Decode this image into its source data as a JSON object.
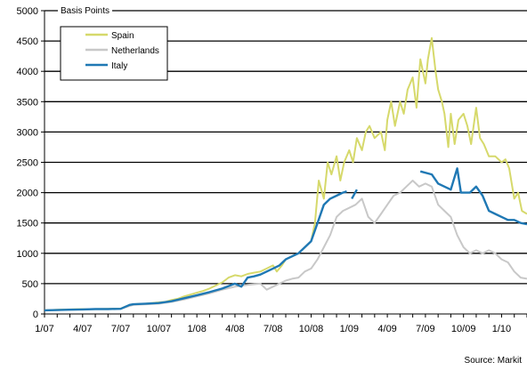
{
  "chart_data": {
    "type": "line",
    "title": "",
    "xlabel": "",
    "ylabel": "",
    "unit_label": "Basis Points",
    "source": "Source: Markit",
    "ylim": [
      0,
      5000
    ],
    "yticks": [
      0,
      500,
      1000,
      1500,
      2000,
      2500,
      3000,
      3500,
      4000,
      4500,
      5000
    ],
    "xlim": [
      0,
      38
    ],
    "xticks": [
      {
        "label": "1/07",
        "x": 0
      },
      {
        "label": "4/07",
        "x": 3
      },
      {
        "label": "7/07",
        "x": 6
      },
      {
        "label": "10/07",
        "x": 9
      },
      {
        "label": "1/08",
        "x": 12
      },
      {
        "label": "4/08",
        "x": 15
      },
      {
        "label": "7/08",
        "x": 18
      },
      {
        "label": "10/08",
        "x": 21
      },
      {
        "label": "1/09",
        "x": 24
      },
      {
        "label": "4/09",
        "x": 27
      },
      {
        "label": "7/09",
        "x": 30
      },
      {
        "label": "10/09",
        "x": 33
      },
      {
        "label": "1/10",
        "x": 36
      }
    ],
    "grid": "horizontal",
    "legend_position": "top-left",
    "series": [
      {
        "name": "Spain",
        "color": "#d6d96b",
        "points": [
          [
            0,
            60
          ],
          [
            1,
            70
          ],
          [
            2,
            75
          ],
          [
            3,
            80
          ],
          [
            4,
            80
          ],
          [
            5,
            85
          ],
          [
            6,
            90
          ],
          [
            6.7,
            150
          ],
          [
            7,
            160
          ],
          [
            8,
            170
          ],
          [
            9,
            190
          ],
          [
            9.5,
            200
          ],
          [
            10,
            230
          ],
          [
            10.5,
            250
          ],
          [
            11,
            290
          ],
          [
            11.5,
            320
          ],
          [
            12,
            350
          ],
          [
            12.5,
            380
          ],
          [
            13,
            420
          ],
          [
            13.5,
            470
          ],
          [
            14,
            520
          ],
          [
            14.5,
            600
          ],
          [
            15,
            640
          ],
          [
            15.5,
            620
          ],
          [
            16,
            660
          ],
          [
            16.5,
            680
          ],
          [
            17,
            700
          ],
          [
            17.5,
            750
          ],
          [
            18,
            800
          ],
          [
            18.3,
            700
          ],
          [
            18.7,
            800
          ],
          [
            19,
            900
          ],
          [
            19.5,
            950
          ],
          [
            20,
            1000
          ],
          [
            20.5,
            1100
          ],
          [
            21,
            1200
          ],
          [
            21.3,
            1500
          ],
          [
            21.6,
            2200
          ],
          [
            22,
            1900
          ],
          [
            22.3,
            2500
          ],
          [
            22.6,
            2300
          ],
          [
            23,
            2600
          ],
          [
            23.3,
            2200
          ],
          [
            23.6,
            2500
          ],
          [
            24,
            2700
          ],
          [
            24.3,
            2500
          ],
          [
            24.6,
            2900
          ],
          [
            25,
            2700
          ],
          [
            25.3,
            3000
          ],
          [
            25.6,
            3100
          ],
          [
            26,
            2900
          ],
          [
            26.5,
            3000
          ],
          [
            26.8,
            2700
          ],
          [
            27,
            3200
          ],
          [
            27.3,
            3500
          ],
          [
            27.6,
            3100
          ],
          [
            28,
            3500
          ],
          [
            28.3,
            3300
          ],
          [
            28.6,
            3700
          ],
          [
            29,
            3900
          ],
          [
            29.3,
            3400
          ],
          [
            29.6,
            4200
          ],
          [
            30,
            3800
          ],
          [
            30.2,
            4200
          ],
          [
            30.5,
            4550
          ],
          [
            30.8,
            4000
          ],
          [
            31,
            3700
          ],
          [
            31.3,
            3500
          ],
          [
            31.5,
            3300
          ],
          [
            31.8,
            2750
          ],
          [
            32,
            3300
          ],
          [
            32.3,
            2800
          ],
          [
            32.6,
            3200
          ],
          [
            33,
            3300
          ],
          [
            33.3,
            3100
          ],
          [
            33.6,
            2800
          ],
          [
            34,
            3400
          ],
          [
            34.3,
            2900
          ],
          [
            34.6,
            2800
          ],
          [
            35,
            2600
          ],
          [
            35.5,
            2600
          ],
          [
            36,
            2500
          ],
          [
            36.3,
            2550
          ],
          [
            36.6,
            2400
          ],
          [
            37,
            1900
          ],
          [
            37.3,
            2000
          ],
          [
            37.6,
            1700
          ],
          [
            38,
            1650
          ]
        ]
      },
      {
        "name": "Netherlands",
        "color": "#c8c8c8",
        "points": [
          [
            0,
            60
          ],
          [
            1,
            65
          ],
          [
            2,
            70
          ],
          [
            3,
            75
          ],
          [
            4,
            80
          ],
          [
            5,
            80
          ],
          [
            6,
            85
          ],
          [
            6.7,
            130
          ],
          [
            7,
            150
          ],
          [
            8,
            160
          ],
          [
            9,
            170
          ],
          [
            10,
            200
          ],
          [
            11,
            240
          ],
          [
            12,
            290
          ],
          [
            13,
            340
          ],
          [
            14,
            400
          ],
          [
            15,
            450
          ],
          [
            16,
            480
          ],
          [
            17,
            500
          ],
          [
            17.5,
            400
          ],
          [
            18,
            450
          ],
          [
            18.5,
            500
          ],
          [
            19,
            550
          ],
          [
            19.5,
            580
          ],
          [
            20,
            600
          ],
          [
            20.5,
            700
          ],
          [
            21,
            750
          ],
          [
            21.5,
            900
          ],
          [
            22,
            1100
          ],
          [
            22.5,
            1300
          ],
          [
            23,
            1600
          ],
          [
            23.5,
            1700
          ],
          [
            24,
            1750
          ],
          [
            24.5,
            1800
          ],
          [
            25,
            1900
          ],
          [
            25.5,
            1600
          ],
          [
            26,
            1500
          ],
          [
            26.5,
            1650
          ],
          [
            27,
            1800
          ],
          [
            27.5,
            1950
          ],
          [
            28,
            2000
          ],
          [
            28.5,
            2100
          ],
          [
            29,
            2200
          ],
          [
            29.5,
            2100
          ],
          [
            30,
            2150
          ],
          [
            30.5,
            2100
          ],
          [
            31,
            1800
          ],
          [
            31.5,
            1700
          ],
          [
            32,
            1600
          ],
          [
            32.5,
            1300
          ],
          [
            33,
            1100
          ],
          [
            33.5,
            1000
          ],
          [
            34,
            1050
          ],
          [
            34.5,
            1000
          ],
          [
            35,
            1050
          ],
          [
            35.5,
            1000
          ],
          [
            36,
            900
          ],
          [
            36.5,
            850
          ],
          [
            37,
            700
          ],
          [
            37.5,
            600
          ],
          [
            38,
            580
          ]
        ]
      },
      {
        "name": "Italy",
        "color": "#1f78b4",
        "segments": [
          [
            [
              0,
              60
            ],
            [
              1,
              65
            ],
            [
              2,
              70
            ],
            [
              3,
              75
            ],
            [
              4,
              80
            ],
            [
              5,
              80
            ],
            [
              6,
              85
            ],
            [
              6.7,
              150
            ],
            [
              7,
              160
            ],
            [
              8,
              170
            ],
            [
              9,
              180
            ],
            [
              10,
              210
            ],
            [
              11,
              260
            ],
            [
              12,
              310
            ],
            [
              13,
              360
            ],
            [
              14,
              420
            ],
            [
              15,
              500
            ],
            [
              15.5,
              450
            ],
            [
              16,
              600
            ],
            [
              16.5,
              620
            ],
            [
              17,
              650
            ],
            [
              17.5,
              700
            ],
            [
              18,
              750
            ],
            [
              18.5,
              800
            ],
            [
              19,
              900
            ],
            [
              19.5,
              950
            ],
            [
              20,
              1000
            ],
            [
              20.5,
              1100
            ],
            [
              21,
              1200
            ],
            [
              21.5,
              1500
            ],
            [
              22,
              1800
            ],
            [
              22.5,
              1900
            ],
            [
              23,
              1950
            ],
            [
              23.5,
              2000
            ],
            [
              23.8,
              2020
            ]
          ],
          [
            [
              24.2,
              1900
            ],
            [
              24.6,
              2050
            ]
          ],
          [
            [
              29.6,
              2350
            ],
            [
              30.5,
              2300
            ],
            [
              31,
              2150
            ],
            [
              31.5,
              2100
            ],
            [
              32,
              2050
            ],
            [
              32.5,
              2400
            ],
            [
              32.8,
              2000
            ],
            [
              33.5,
              2000
            ],
            [
              34,
              2100
            ],
            [
              34.5,
              1950
            ],
            [
              35,
              1700
            ],
            [
              35.5,
              1650
            ],
            [
              36,
              1600
            ],
            [
              36.5,
              1550
            ],
            [
              37,
              1550
            ],
            [
              37.5,
              1500
            ],
            [
              38,
              1480
            ]
          ]
        ]
      }
    ]
  }
}
